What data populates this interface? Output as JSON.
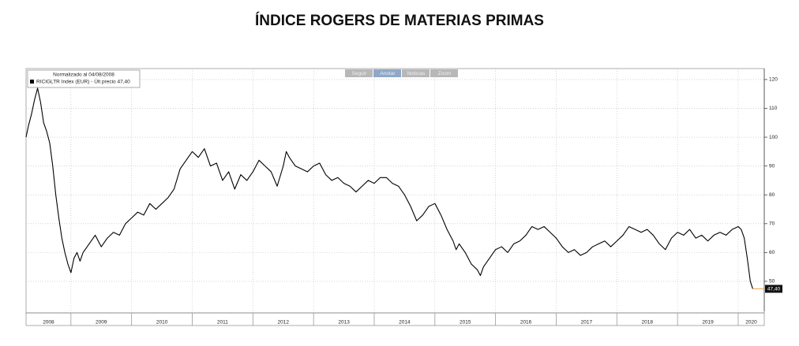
{
  "chart_data": {
    "type": "line",
    "title": "ÍNDICE ROGERS DE MATERIAS PRIMAS",
    "legend_header": "Normalizado al 04/08/2008",
    "toolbar": [
      "Seguir",
      "Anotar",
      "Noticias",
      "Zoom"
    ],
    "x": [
      2008.26,
      2008.3,
      2008.35,
      2008.4,
      2008.45,
      2008.5,
      2008.55,
      2008.6,
      2008.65,
      2008.7,
      2008.75,
      2008.8,
      2008.85,
      2008.9,
      2008.95,
      2009.0,
      2009.05,
      2009.1,
      2009.15,
      2009.2,
      2009.3,
      2009.4,
      2009.5,
      2009.6,
      2009.7,
      2009.8,
      2009.9,
      2010.0,
      2010.1,
      2010.2,
      2010.3,
      2010.4,
      2010.5,
      2010.6,
      2010.7,
      2010.8,
      2010.9,
      2011.0,
      2011.1,
      2011.2,
      2011.3,
      2011.4,
      2011.5,
      2011.6,
      2011.7,
      2011.8,
      2011.9,
      2012.0,
      2012.1,
      2012.2,
      2012.3,
      2012.4,
      2012.5,
      2012.55,
      2012.6,
      2012.7,
      2012.8,
      2012.9,
      2013.0,
      2013.1,
      2013.2,
      2013.3,
      2013.4,
      2013.5,
      2013.6,
      2013.7,
      2013.8,
      2013.9,
      2014.0,
      2014.1,
      2014.2,
      2014.3,
      2014.4,
      2014.5,
      2014.6,
      2014.7,
      2014.8,
      2014.9,
      2015.0,
      2015.1,
      2015.2,
      2015.3,
      2015.35,
      2015.4,
      2015.5,
      2015.6,
      2015.7,
      2015.75,
      2015.8,
      2015.9,
      2016.0,
      2016.1,
      2016.2,
      2016.3,
      2016.4,
      2016.5,
      2016.6,
      2016.7,
      2016.8,
      2016.9,
      2017.0,
      2017.1,
      2017.2,
      2017.3,
      2017.4,
      2017.5,
      2017.6,
      2017.7,
      2017.8,
      2017.9,
      2018.0,
      2018.1,
      2018.2,
      2018.3,
      2018.4,
      2018.5,
      2018.6,
      2018.7,
      2018.8,
      2018.9,
      2019.0,
      2019.1,
      2019.2,
      2019.3,
      2019.4,
      2019.5,
      2019.6,
      2019.7,
      2019.8,
      2019.9,
      2020.0,
      2020.05,
      2020.1,
      2020.15,
      2020.2,
      2020.24
    ],
    "series": [
      {
        "name": "RICIGLTR Index (EUR) - Últ precio 47,40",
        "color": "#000000",
        "values": [
          100,
          104,
          108,
          113,
          117,
          112,
          105,
          102,
          98,
          90,
          80,
          72,
          65,
          60,
          56,
          53,
          58,
          60,
          57,
          60,
          63,
          66,
          62,
          65,
          67,
          66,
          70,
          72,
          74,
          73,
          77,
          75,
          77,
          79,
          82,
          89,
          92,
          95,
          93,
          96,
          90,
          91,
          85,
          88,
          82,
          87,
          85,
          88,
          92,
          90,
          88,
          83,
          90,
          95,
          93,
          90,
          89,
          88,
          90,
          91,
          87,
          85,
          86,
          84,
          83,
          81,
          83,
          85,
          84,
          86,
          86,
          84,
          83,
          80,
          76,
          71,
          73,
          76,
          77,
          73,
          68,
          64,
          61,
          63,
          60,
          56,
          54,
          52,
          55,
          58,
          61,
          62,
          60,
          63,
          64,
          66,
          69,
          68,
          69,
          67,
          65,
          62,
          60,
          61,
          59,
          60,
          62,
          63,
          64,
          62,
          64,
          66,
          69,
          68,
          67,
          68,
          66,
          63,
          61,
          65,
          67,
          66,
          68,
          65,
          66,
          64,
          66,
          67,
          66,
          68,
          69,
          68,
          65,
          58,
          50,
          47.4
        ]
      }
    ],
    "last_price": 47.4,
    "last_price_label": "47,40",
    "last_price_color": "#f0a050",
    "xlim": [
      2008.26,
      2020.43
    ],
    "xticks": [
      2009,
      2010,
      2011,
      2012,
      2013,
      2014,
      2015,
      2016,
      2017,
      2018,
      2019,
      2020
    ],
    "year_labels": [
      2008,
      2009,
      2010,
      2011,
      2012,
      2013,
      2014,
      2015,
      2016,
      2017,
      2018,
      2019,
      2020
    ],
    "ylim": [
      39.6,
      123.8
    ],
    "yticks": [
      50,
      60,
      70,
      80,
      90,
      100,
      110,
      120
    ],
    "grid": true
  }
}
